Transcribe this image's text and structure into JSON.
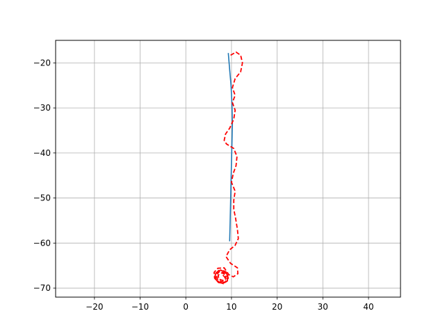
{
  "chart_data": {
    "type": "line",
    "title": "",
    "xlabel": "",
    "ylabel": "",
    "xlim": [
      -28.5,
      47
    ],
    "ylim": [
      -72,
      -15
    ],
    "grid": true,
    "x_ticks": [
      -20,
      -10,
      0,
      10,
      20,
      30,
      40
    ],
    "y_ticks": [
      -20,
      -30,
      -40,
      -50,
      -60,
      -70
    ],
    "x_tick_labels": [
      "−20",
      "−10",
      "0",
      "10",
      "20",
      "30",
      "40"
    ],
    "y_tick_labels": [
      "−20",
      "−30",
      "−40",
      "−50",
      "−60",
      "−70"
    ],
    "series": [
      {
        "style": "solid",
        "color": "#1f77b4",
        "points": [
          [
            9.3,
            -17.8
          ],
          [
            9.6,
            -21.5
          ],
          [
            9.9,
            -25.0
          ],
          [
            10.1,
            -29.0
          ],
          [
            10.2,
            -33.5
          ],
          [
            10.1,
            -38.0
          ],
          [
            10.0,
            -42.0
          ],
          [
            9.9,
            -46.5
          ],
          [
            9.8,
            -51.0
          ],
          [
            9.7,
            -55.5
          ],
          [
            9.6,
            -59.6
          ]
        ]
      },
      {
        "style": "dashed",
        "color": "#ff0000",
        "points": [
          [
            9.8,
            -18.3
          ],
          [
            11.0,
            -17.6
          ],
          [
            12.0,
            -18.3
          ],
          [
            12.4,
            -20.0
          ],
          [
            12.0,
            -22.0
          ],
          [
            10.8,
            -23.5
          ],
          [
            10.2,
            -25.5
          ],
          [
            10.8,
            -27.2
          ],
          [
            10.2,
            -28.8
          ],
          [
            10.8,
            -30.5
          ],
          [
            10.5,
            -32.5
          ],
          [
            9.6,
            -34.5
          ],
          [
            8.7,
            -35.8
          ],
          [
            8.4,
            -37.2
          ],
          [
            8.9,
            -38.0
          ],
          [
            10.5,
            -39.0
          ],
          [
            11.2,
            -40.8
          ],
          [
            11.0,
            -42.8
          ],
          [
            10.4,
            -44.5
          ],
          [
            10.0,
            -46.5
          ],
          [
            10.8,
            -48.5
          ],
          [
            10.5,
            -50.5
          ],
          [
            10.5,
            -52.5
          ],
          [
            10.9,
            -54.5
          ],
          [
            11.3,
            -57.0
          ],
          [
            11.5,
            -59.0
          ],
          [
            10.8,
            -60.5
          ],
          [
            9.6,
            -61.5
          ],
          [
            8.8,
            -63.0
          ],
          [
            9.8,
            -64.5
          ],
          [
            11.3,
            -65.5
          ],
          [
            11.4,
            -66.8
          ],
          [
            10.4,
            -67.5
          ],
          [
            9.4,
            -67.0
          ],
          [
            8.4,
            -65.5
          ],
          [
            7.0,
            -65.6
          ],
          [
            6.2,
            -66.5
          ],
          [
            6.3,
            -67.8
          ],
          [
            7.2,
            -68.8
          ],
          [
            8.5,
            -68.8
          ],
          [
            9.3,
            -67.8
          ],
          [
            8.8,
            -66.4
          ],
          [
            7.6,
            -66.0
          ],
          [
            6.6,
            -66.6
          ],
          [
            6.3,
            -67.7
          ],
          [
            7.0,
            -68.6
          ],
          [
            8.2,
            -69.0
          ],
          [
            9.1,
            -68.4
          ],
          [
            9.2,
            -67.2
          ],
          [
            8.4,
            -66.2
          ],
          [
            7.2,
            -66.1
          ],
          [
            6.4,
            -66.9
          ],
          [
            6.6,
            -68.1
          ],
          [
            7.6,
            -68.9
          ],
          [
            8.7,
            -68.6
          ],
          [
            9.2,
            -67.6
          ],
          [
            8.6,
            -66.6
          ],
          [
            7.4,
            -66.3
          ],
          [
            6.7,
            -67.0
          ],
          [
            6.9,
            -68.0
          ],
          [
            7.8,
            -68.6
          ],
          [
            8.7,
            -68.1
          ],
          [
            8.8,
            -67.1
          ],
          [
            7.9,
            -66.6
          ],
          [
            7.1,
            -67.1
          ],
          [
            7.2,
            -68.0
          ],
          [
            8.1,
            -68.3
          ],
          [
            8.6,
            -67.6
          ],
          [
            8.0,
            -67.0
          ]
        ]
      }
    ]
  }
}
